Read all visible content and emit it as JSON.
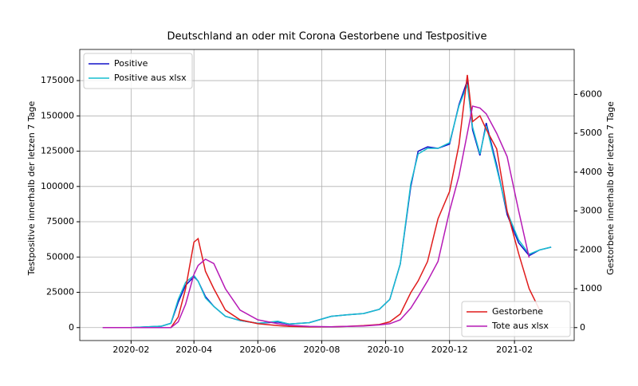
{
  "chart_data": {
    "type": "line",
    "title": "Deutschland an oder mit Corona Gestorbene und Testpositive",
    "ylabel": "Testpositive innerhalb der letzen 7 Tage",
    "y2label": "Gestorbene innerhalb der letzen 7 Tage",
    "x": [
      "2020-01-05",
      "2020-02-01",
      "2020-03-01",
      "2020-03-10",
      "2020-03-17",
      "2020-03-24",
      "2020-04-01",
      "2020-04-05",
      "2020-04-12",
      "2020-04-20",
      "2020-05-01",
      "2020-05-15",
      "2020-06-01",
      "2020-06-20",
      "2020-07-01",
      "2020-07-20",
      "2020-08-10",
      "2020-08-25",
      "2020-09-10",
      "2020-09-25",
      "2020-10-05",
      "2020-10-15",
      "2020-10-25",
      "2020-11-01",
      "2020-11-10",
      "2020-11-20",
      "2020-12-01",
      "2020-12-10",
      "2020-12-18",
      "2020-12-23",
      "2020-12-30",
      "2021-01-05",
      "2021-01-15",
      "2021-01-25",
      "2021-02-05",
      "2021-02-15",
      "2021-02-25",
      "2021-03-08"
    ],
    "series": [
      {
        "name": "Positive",
        "color": "#1010c8",
        "values": [
          0,
          0,
          1000,
          3000,
          18000,
          30000,
          36000,
          33000,
          22000,
          15000,
          8000,
          5000,
          3000,
          4000,
          2500,
          3500,
          8000,
          9000,
          10000,
          13000,
          20000,
          45000,
          100000,
          125000,
          128000,
          127000,
          130000,
          158000,
          175000,
          140000,
          122000,
          145000,
          115000,
          80000,
          60000,
          51000,
          55000,
          57000
        ]
      },
      {
        "name": "Positive aus xlsx",
        "color": "#17becf",
        "values": [
          0,
          0,
          1000,
          3000,
          20000,
          32000,
          37000,
          33000,
          21000,
          15000,
          8000,
          5000,
          3000,
          4500,
          2500,
          3500,
          8000,
          9000,
          10000,
          13000,
          20000,
          45000,
          102000,
          123000,
          127000,
          127000,
          131000,
          157000,
          172000,
          142000,
          123000,
          143000,
          113000,
          82000,
          62000,
          52000,
          55000,
          57000
        ]
      },
      {
        "name": "Gestorbene",
        "color": "#e01b1b",
        "axis": "y2",
        "values": [
          0,
          0,
          0,
          0,
          275,
          1000,
          2200,
          2290,
          1450,
          1000,
          450,
          200,
          100,
          50,
          30,
          20,
          20,
          30,
          50,
          80,
          150,
          350,
          900,
          1200,
          1700,
          2800,
          3500,
          4700,
          6500,
          5300,
          5450,
          5100,
          4600,
          3000,
          1900,
          1000,
          450,
          null
        ]
      },
      {
        "name": "Tote aus xlsx",
        "color": "#b61ab6",
        "axis": "y2",
        "values": [
          0,
          0,
          0,
          0,
          150,
          600,
          1370,
          1600,
          1760,
          1650,
          1000,
          450,
          200,
          100,
          60,
          30,
          20,
          30,
          40,
          70,
          100,
          200,
          500,
          800,
          1200,
          1700,
          3000,
          3900,
          5000,
          5700,
          5650,
          5500,
          5000,
          4400,
          3000,
          1800,
          null,
          null
        ]
      }
    ],
    "xlim": [
      "2019-12-14",
      "2021-03-30"
    ],
    "xticks": [
      {
        "value": "2020-02-01",
        "label": "2020-02"
      },
      {
        "value": "2020-04-01",
        "label": "2020-04"
      },
      {
        "value": "2020-06-01",
        "label": "2020-06"
      },
      {
        "value": "2020-08-01",
        "label": "2020-08"
      },
      {
        "value": "2020-10-01",
        "label": "2020-10"
      },
      {
        "value": "2020-12-01",
        "label": "2020-12"
      },
      {
        "value": "2021-02-01",
        "label": "2021-02"
      }
    ],
    "ylim": [
      -9180,
      197080
    ],
    "yticks": [
      0,
      25000,
      50000,
      75000,
      100000,
      125000,
      150000,
      175000
    ],
    "y2lim": [
      -333,
      7157
    ],
    "y2ticks": [
      0,
      1000,
      2000,
      3000,
      4000,
      5000,
      6000
    ],
    "grid": true,
    "legend": "upper left",
    "legend2": "lower right"
  }
}
